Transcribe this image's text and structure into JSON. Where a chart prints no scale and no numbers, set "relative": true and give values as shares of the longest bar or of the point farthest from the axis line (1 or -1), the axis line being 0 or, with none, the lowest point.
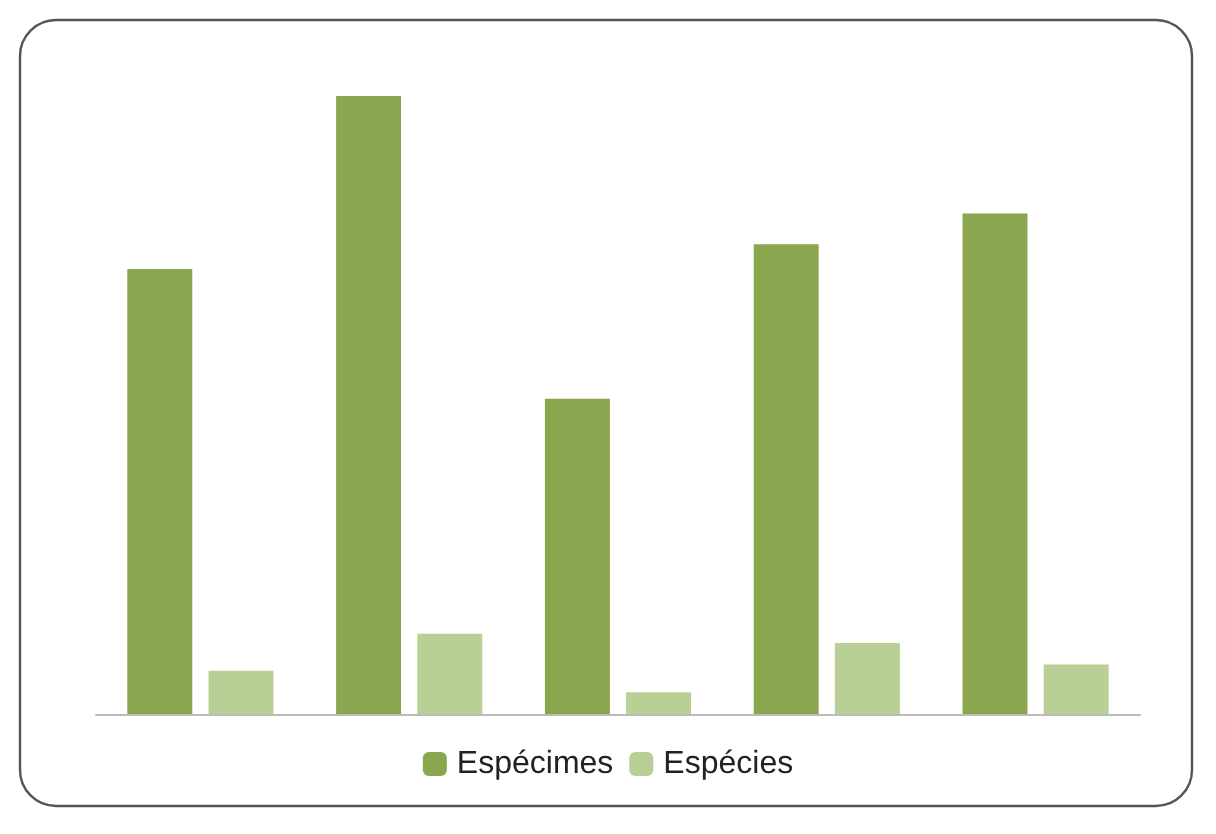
{
  "chart_data": {
    "type": "bar",
    "relative": true,
    "categories": [
      null,
      null,
      null,
      null,
      null
    ],
    "series": [
      {
        "name": "Espécimes",
        "color": "#8aa64e",
        "values": [
          0.72,
          1,
          0.51,
          0.76,
          0.81
        ]
      },
      {
        "name": "Espécies",
        "color": "#b8d096",
        "values": [
          0.07,
          0.13,
          0.035,
          0.115,
          0.08
        ]
      }
    ],
    "legend": "bottom"
  }
}
